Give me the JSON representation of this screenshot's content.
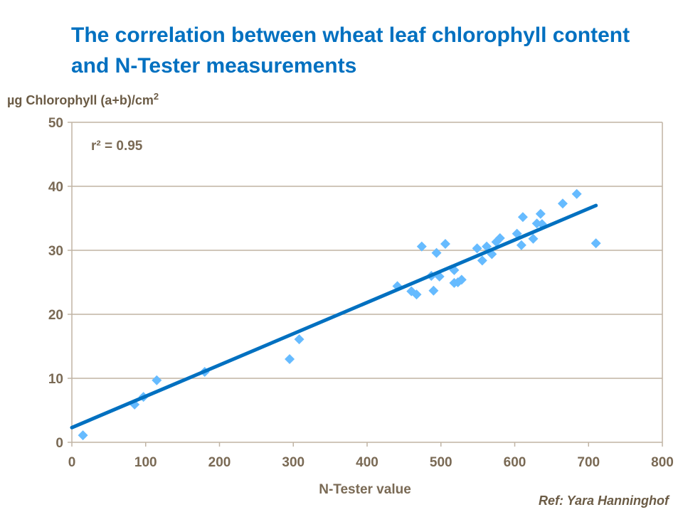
{
  "title": "The correlation between wheat leaf chlorophyll content and N-Tester measurements",
  "ref": "Ref: Yara Hanninghof",
  "chart_data": {
    "type": "scatter",
    "title": "The correlation between wheat leaf chlorophyll content and N-Tester measurements",
    "xlabel": "N-Tester value",
    "ylabel": "µg Chlorophyll (a+b)/cm",
    "ylabel_superscript": "2",
    "annotation": "r² = 0.95",
    "xlim": [
      0,
      800
    ],
    "ylim": [
      0,
      50
    ],
    "xticks": [
      0,
      100,
      200,
      300,
      400,
      500,
      600,
      700,
      800
    ],
    "yticks": [
      0,
      10,
      20,
      30,
      40,
      50
    ],
    "grid": "horizontal",
    "colors": {
      "points": "#66bbff",
      "trendline": "#0070c0",
      "grid": "#c0b4a4"
    },
    "marker": "diamond",
    "points": [
      [
        15,
        1.1
      ],
      [
        85,
        5.9
      ],
      [
        97,
        7.1
      ],
      [
        115,
        9.7
      ],
      [
        180,
        11.0
      ],
      [
        295,
        13.0
      ],
      [
        308,
        16.1
      ],
      [
        441,
        24.4
      ],
      [
        460,
        23.6
      ],
      [
        467,
        23.1
      ],
      [
        474,
        30.6
      ],
      [
        487,
        26.0
      ],
      [
        490,
        23.7
      ],
      [
        494,
        29.6
      ],
      [
        498,
        25.9
      ],
      [
        506,
        31.0
      ],
      [
        518,
        26.9
      ],
      [
        518,
        24.9
      ],
      [
        523,
        25.0
      ],
      [
        528,
        25.4
      ],
      [
        549,
        30.3
      ],
      [
        556,
        28.4
      ],
      [
        562,
        30.6
      ],
      [
        569,
        29.4
      ],
      [
        575,
        31.3
      ],
      [
        580,
        31.9
      ],
      [
        603,
        32.6
      ],
      [
        609,
        30.8
      ],
      [
        611,
        35.2
      ],
      [
        625,
        31.8
      ],
      [
        630,
        34.2
      ],
      [
        635,
        35.7
      ],
      [
        637,
        34.1
      ],
      [
        665,
        37.3
      ],
      [
        684,
        38.8
      ],
      [
        710,
        31.1
      ]
    ],
    "trendline": {
      "x": [
        0,
        710
      ],
      "y": [
        2.3,
        37.0
      ]
    }
  }
}
